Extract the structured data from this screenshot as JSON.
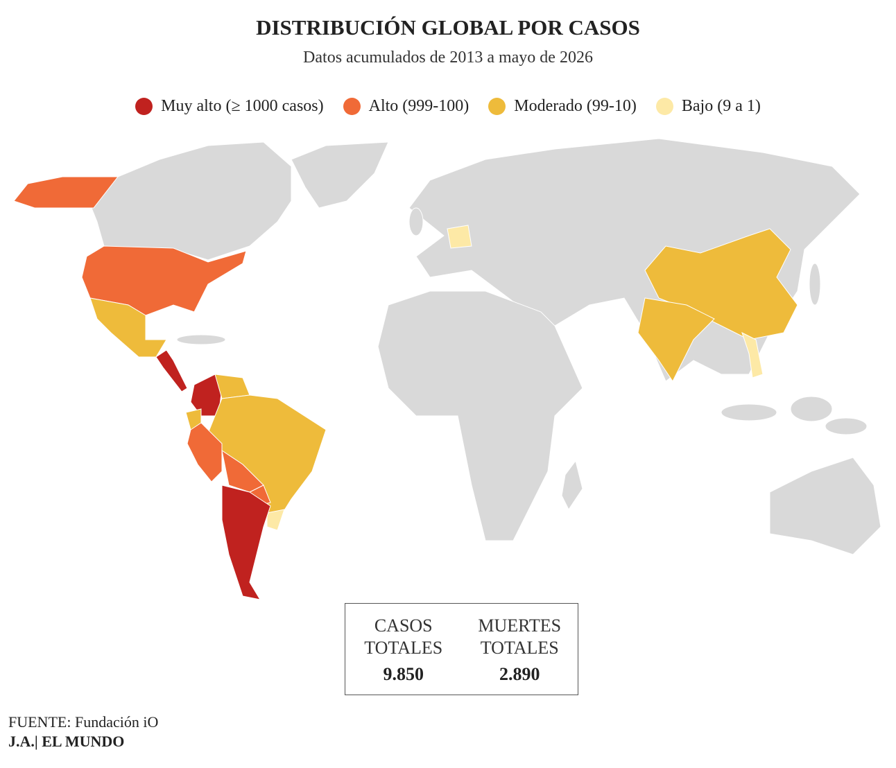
{
  "header": {
    "title": "DISTRIBUCIÓN GLOBAL POR CASOS",
    "subtitle": "Datos acumulados de 2013 a mayo de 2026"
  },
  "legend": [
    {
      "label": "Muy alto (≥ 1000 casos)",
      "color": "#c0221f"
    },
    {
      "label": "Alto (999-100)",
      "color": "#f06a37"
    },
    {
      "label": "Moderado (99-10)",
      "color": "#eebb3b"
    },
    {
      "label": "Bajo (9 a 1)",
      "color": "#fde9a6"
    }
  ],
  "land_color": "#d9d9d9",
  "stats": [
    {
      "label": "CASOS TOTALES",
      "value": "9.850"
    },
    {
      "label": "MUERTES TOTALES",
      "value": "2.890"
    }
  ],
  "footer": {
    "source_label": "FUENTE:",
    "source": "Fundación iO",
    "credit": "J.A.| EL MUNDO"
  }
}
